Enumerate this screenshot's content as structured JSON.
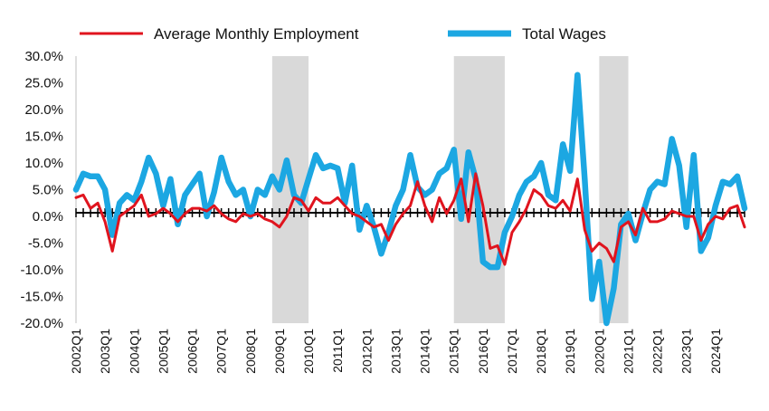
{
  "chart_data": {
    "type": "line",
    "xlabel": "",
    "ylabel": "",
    "ylim": [
      -20,
      30
    ],
    "y_ticks": [
      "30.0%",
      "25.0%",
      "20.0%",
      "15.0%",
      "10.0%",
      "5.0%",
      "0.0%",
      "-5.0%",
      "-10.0%",
      "-15.0%",
      "-20.0%"
    ],
    "y_tick_values": [
      30,
      25,
      20,
      15,
      10,
      5,
      0,
      -5,
      -10,
      -15,
      -20
    ],
    "x_tick_labels": [
      "2002Q1",
      "2003Q1",
      "2004Q1",
      "2005Q1",
      "2006Q1",
      "2007Q1",
      "2008Q1",
      "2009Q1",
      "2010Q1",
      "2011Q1",
      "2012Q1",
      "2013Q1",
      "2014Q1",
      "2015Q1",
      "2016Q1",
      "2017Q1",
      "2018Q1",
      "2019Q1",
      "2020Q1",
      "2021Q1",
      "2022Q1",
      "2023Q1",
      "2024Q1"
    ],
    "legend_position": "top",
    "recession_shading": [
      {
        "start": "2008Q4",
        "end": "2010Q1"
      },
      {
        "start": "2015Q1",
        "end": "2016Q4"
      },
      {
        "start": "2020Q1",
        "end": "2021Q1"
      }
    ],
    "series": [
      {
        "name": "Average Monthly Employment",
        "color": "#e0141e",
        "values": [
          3.5,
          4,
          1.5,
          2.5,
          -1,
          -6.5,
          0,
          1,
          2,
          4,
          0,
          0.5,
          1.5,
          0.5,
          -1,
          0.5,
          1.5,
          1.5,
          1,
          2,
          0.5,
          -0.5,
          -1,
          0.5,
          0,
          0.5,
          -0.5,
          -1,
          -2,
          0,
          3.5,
          3,
          1,
          3.5,
          2.5,
          2.5,
          3.5,
          2,
          0.5,
          0,
          -1,
          -2,
          -1.5,
          -4.5,
          -1.5,
          0.5,
          2,
          6.5,
          2,
          -1,
          3.5,
          0.5,
          3,
          7,
          -1,
          8,
          2,
          -6,
          -5.5,
          -9,
          -3,
          -1,
          1.5,
          5,
          4,
          2,
          1.5,
          3,
          1,
          7,
          -2.5,
          -6.5,
          -5,
          -6,
          -8.5,
          -2,
          -1,
          -3.5,
          1.5,
          -1,
          -1,
          -0.5,
          1,
          0.5,
          0,
          0,
          -4.5,
          -1.5,
          0,
          -0.5,
          1.5,
          2,
          -2
        ]
      },
      {
        "name": "Total Wages",
        "color": "#1ca7e2",
        "values": [
          5,
          8,
          7.5,
          7.5,
          5,
          -3.5,
          2.5,
          4,
          3,
          6.5,
          11,
          8,
          2,
          7,
          -1.5,
          4,
          6,
          8,
          0,
          4.5,
          11,
          6.5,
          4,
          5,
          0,
          5,
          4,
          7.5,
          5,
          10.5,
          4,
          2.5,
          7,
          11.5,
          9,
          9.5,
          9,
          2.5,
          9.5,
          -2.5,
          2,
          -2,
          -7,
          -3,
          2,
          5,
          11.5,
          5.5,
          4,
          5,
          8,
          9,
          12.5,
          -0.5,
          12,
          7,
          -8.5,
          -9.5,
          -9.5,
          -3,
          0,
          4,
          6.5,
          7.5,
          10,
          4,
          3,
          13.5,
          8.5,
          26.5,
          7,
          -15.5,
          -8.5,
          -20,
          -13.5,
          -1.5,
          0.5,
          -4.5,
          0.5,
          5,
          6.5,
          6,
          14.5,
          9.5,
          -2,
          11.5,
          -6.5,
          -4,
          2,
          6.5,
          6,
          7.5,
          1.5
        ]
      }
    ]
  }
}
